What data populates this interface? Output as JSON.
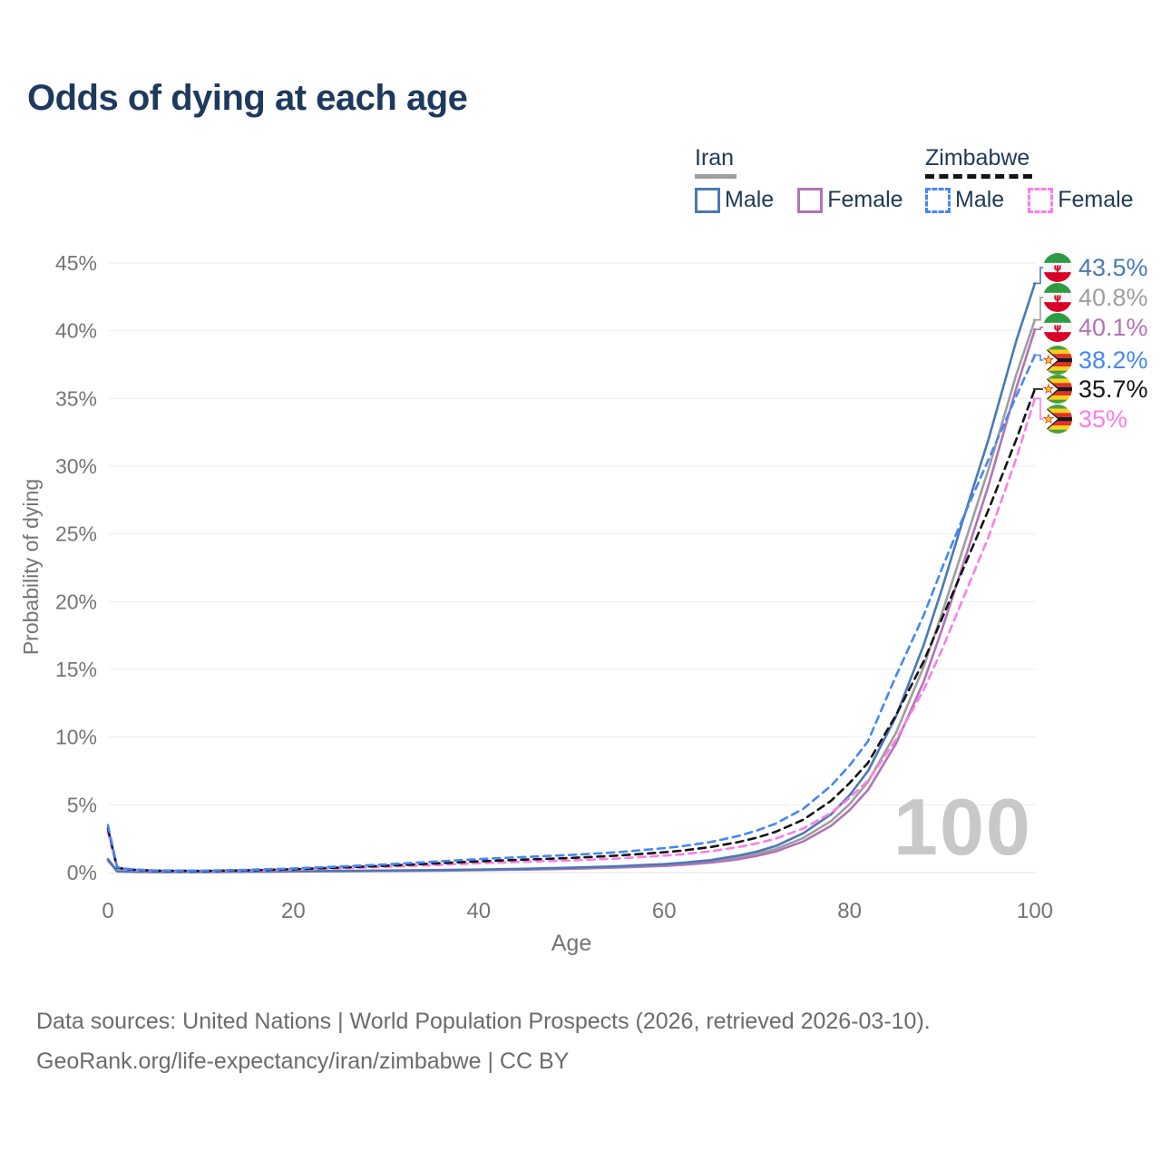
{
  "title": "Odds of dying at each age",
  "legend": {
    "iran": {
      "label": "Iran",
      "male_label": "Male",
      "female_label": "Female"
    },
    "zimbabwe": {
      "label": "Zimbabwe",
      "male_label": "Male",
      "female_label": "Female"
    }
  },
  "watermark": "100",
  "footer": {
    "line1": "Data sources: United Nations | World Population Prospects (2026, retrieved 2026-03-10).",
    "line2": "GeoRank.org/life-expectancy/iran/zimbabwe | CC BY"
  },
  "colors": {
    "title_text": "#1d3a5e",
    "axis_text": "#757575",
    "grid": "#ededed",
    "watermark": "#c8c8c8",
    "footer_text": "#6b6b6b"
  },
  "chart_data": {
    "type": "line",
    "title": "Odds of dying at each age",
    "xlabel": "Age",
    "ylabel": "Probability of dying",
    "xlim": [
      0,
      100
    ],
    "ylim": [
      0,
      45
    ],
    "x_ticks": [
      0,
      20,
      40,
      60,
      80,
      100
    ],
    "y_ticks": [
      0,
      5,
      10,
      15,
      20,
      25,
      30,
      35,
      40,
      45
    ],
    "y_tick_suffix": "%",
    "legend_position": "top-right",
    "grid": "horizontal-only",
    "ages": [
      0,
      1,
      2,
      3,
      5,
      10,
      15,
      20,
      25,
      30,
      35,
      40,
      45,
      50,
      55,
      60,
      62,
      65,
      68,
      70,
      72,
      75,
      78,
      80,
      82,
      85,
      88,
      90,
      92,
      95,
      98,
      100
    ],
    "series": [
      {
        "name": "Iran male",
        "country": "Iran",
        "sex": "Male",
        "color": "#4a79b5",
        "dashed": false,
        "end_label": "43.5%",
        "values": [
          1.0,
          0.1,
          0.07,
          0.06,
          0.05,
          0.05,
          0.07,
          0.1,
          0.12,
          0.15,
          0.18,
          0.22,
          0.28,
          0.36,
          0.47,
          0.62,
          0.72,
          0.92,
          1.25,
          1.55,
          1.95,
          2.9,
          4.3,
          5.7,
          7.5,
          11.5,
          16.8,
          21.0,
          25.5,
          32.0,
          39.3,
          43.5
        ]
      },
      {
        "name": "Iran both sexes",
        "country": "Iran",
        "sex": "Both",
        "color": "#9e9e9e",
        "dashed": false,
        "end_label": "40.8%",
        "values": [
          0.95,
          0.09,
          0.065,
          0.055,
          0.045,
          0.045,
          0.06,
          0.09,
          0.11,
          0.13,
          0.16,
          0.2,
          0.25,
          0.32,
          0.42,
          0.55,
          0.64,
          0.82,
          1.1,
          1.38,
          1.73,
          2.55,
          3.8,
          5.05,
          6.7,
          10.3,
          15.2,
          19.2,
          23.4,
          29.8,
          36.8,
          40.8
        ]
      },
      {
        "name": "Iran female",
        "country": "Iran",
        "sex": "Female",
        "color": "#b173b6",
        "dashed": false,
        "end_label": "40.1%",
        "values": [
          0.88,
          0.085,
          0.06,
          0.05,
          0.04,
          0.04,
          0.055,
          0.08,
          0.1,
          0.12,
          0.14,
          0.18,
          0.22,
          0.28,
          0.37,
          0.49,
          0.57,
          0.73,
          0.98,
          1.23,
          1.55,
          2.3,
          3.45,
          4.6,
          6.1,
          9.5,
          14.1,
          18.0,
          22.2,
          28.6,
          35.8,
          40.1
        ]
      },
      {
        "name": "Zimbabwe male",
        "country": "Zimbabwe",
        "sex": "Male",
        "color": "#4487f6",
        "dashed": true,
        "end_label": "38.2%",
        "values": [
          3.5,
          0.4,
          0.28,
          0.22,
          0.16,
          0.14,
          0.2,
          0.3,
          0.45,
          0.6,
          0.8,
          1.0,
          1.15,
          1.3,
          1.5,
          1.8,
          1.95,
          2.25,
          2.7,
          3.1,
          3.6,
          4.7,
          6.4,
          7.9,
          9.7,
          14.5,
          19.0,
          22.5,
          25.8,
          30.5,
          35.2,
          38.2
        ]
      },
      {
        "name": "Zimbabwe both sexes",
        "country": "Zimbabwe",
        "sex": "Both",
        "color": "#141414",
        "dashed": true,
        "end_label": "35.7%",
        "values": [
          3.25,
          0.36,
          0.25,
          0.2,
          0.14,
          0.12,
          0.17,
          0.25,
          0.37,
          0.5,
          0.66,
          0.83,
          0.96,
          1.08,
          1.25,
          1.5,
          1.62,
          1.88,
          2.25,
          2.58,
          3.0,
          3.9,
          5.3,
          6.6,
          8.1,
          11.6,
          15.6,
          18.8,
          22.0,
          26.8,
          32.0,
          35.7
        ]
      },
      {
        "name": "Zimbabwe female",
        "country": "Zimbabwe",
        "sex": "Female",
        "color": "#ff7ce5",
        "dashed": true,
        "end_label": "35%",
        "values": [
          3.0,
          0.32,
          0.22,
          0.17,
          0.12,
          0.1,
          0.14,
          0.21,
          0.31,
          0.42,
          0.55,
          0.69,
          0.8,
          0.9,
          1.04,
          1.25,
          1.35,
          1.57,
          1.88,
          2.15,
          2.5,
          3.25,
          4.4,
          5.5,
          6.8,
          9.8,
          13.5,
          16.5,
          19.8,
          24.8,
          30.6,
          35.0
        ]
      }
    ]
  }
}
